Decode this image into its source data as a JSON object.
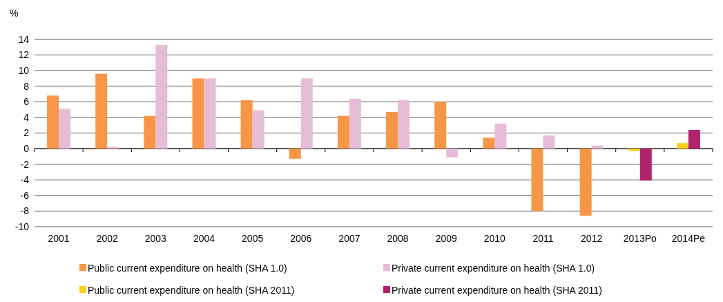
{
  "chart_data": {
    "type": "bar",
    "ylabel": "%",
    "categories": [
      "2001",
      "2002",
      "2003",
      "2004",
      "2005",
      "2006",
      "2007",
      "2008",
      "2009",
      "2010",
      "2011",
      "2012",
      "2013Po",
      "2014Pe"
    ],
    "series": [
      {
        "name": "Public current expenditure on health (SHA 1.0)",
        "color": "#f79646",
        "values": [
          6.8,
          9.6,
          4.2,
          9.0,
          6.2,
          -1.3,
          4.2,
          4.7,
          6.0,
          1.4,
          -8.0,
          -8.6,
          null,
          null
        ]
      },
      {
        "name": "Private current expenditure on health (SHA 1.0)",
        "color": "#e6bcd6",
        "values": [
          5.1,
          0.2,
          13.3,
          9.0,
          4.9,
          9.0,
          6.4,
          6.2,
          -1.1,
          3.2,
          1.7,
          0.4,
          null,
          null
        ]
      },
      {
        "name": "Public current expenditure on health (SHA 2011)",
        "color": "#f5d11d",
        "values": [
          null,
          null,
          null,
          null,
          null,
          null,
          null,
          null,
          null,
          null,
          null,
          null,
          -0.3,
          0.7
        ]
      },
      {
        "name": "Private current expenditure on health (SHA 2011)",
        "color": "#b0246c",
        "values": [
          null,
          null,
          null,
          null,
          null,
          null,
          null,
          null,
          null,
          null,
          null,
          null,
          -4.1,
          2.4
        ]
      }
    ],
    "ylim": [
      -10,
      14
    ],
    "yticks": [
      -10,
      -8,
      -6,
      -4,
      -2,
      0,
      2,
      4,
      6,
      8,
      10,
      12,
      14
    ],
    "grid": "y",
    "legend": "bottom"
  }
}
